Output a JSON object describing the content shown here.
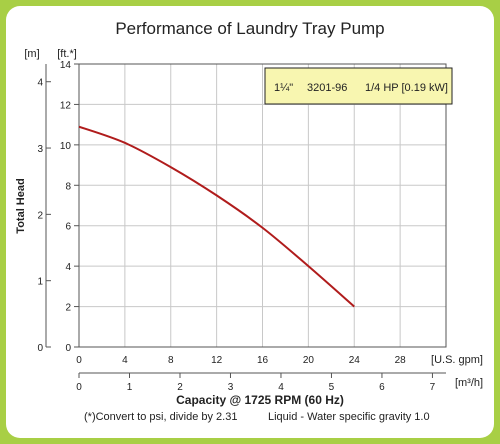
{
  "chart_data": {
    "type": "line",
    "title": "Performance of Laundry Tray Pump",
    "ylabel": "Total Head",
    "xlabel": "Capacity @ 1725 RPM (60 Hz)",
    "footnote_left": "(*)Convert to psi, divide by 2.31",
    "footnote_right": "Liquid - Water specific gravity 1.0",
    "x_primary": {
      "unit_label": "[U.S. gpm]",
      "range": [
        0,
        32
      ],
      "ticks": [
        0,
        4,
        8,
        12,
        16,
        20,
        24,
        28
      ]
    },
    "x_secondary": {
      "unit_label": "[m³/h]",
      "range": [
        0,
        7.2684
      ],
      "ticks": [
        0,
        1,
        2,
        3,
        4,
        5,
        6,
        7
      ]
    },
    "y_primary": {
      "unit_label": "[ft.*]",
      "range": [
        0,
        14
      ],
      "ticks": [
        0,
        2,
        4,
        6,
        8,
        10,
        12,
        14
      ]
    },
    "y_secondary": {
      "unit_label": "[m]",
      "range": [
        0,
        4.2672
      ],
      "ticks": [
        0,
        1,
        2,
        3,
        4
      ]
    },
    "grid": true,
    "annotation": {
      "lines": [
        "1¼\"",
        "3201-96",
        "1/4 HP [0.19 kW]"
      ],
      "placement": "top-right"
    },
    "series": [
      {
        "name": "",
        "color": "#b01c1c",
        "x": [
          0,
          4,
          8,
          12,
          16,
          20,
          24
        ],
        "y": [
          10.9,
          10.1,
          8.9,
          7.5,
          5.9,
          4.0,
          2.0
        ]
      }
    ]
  }
}
